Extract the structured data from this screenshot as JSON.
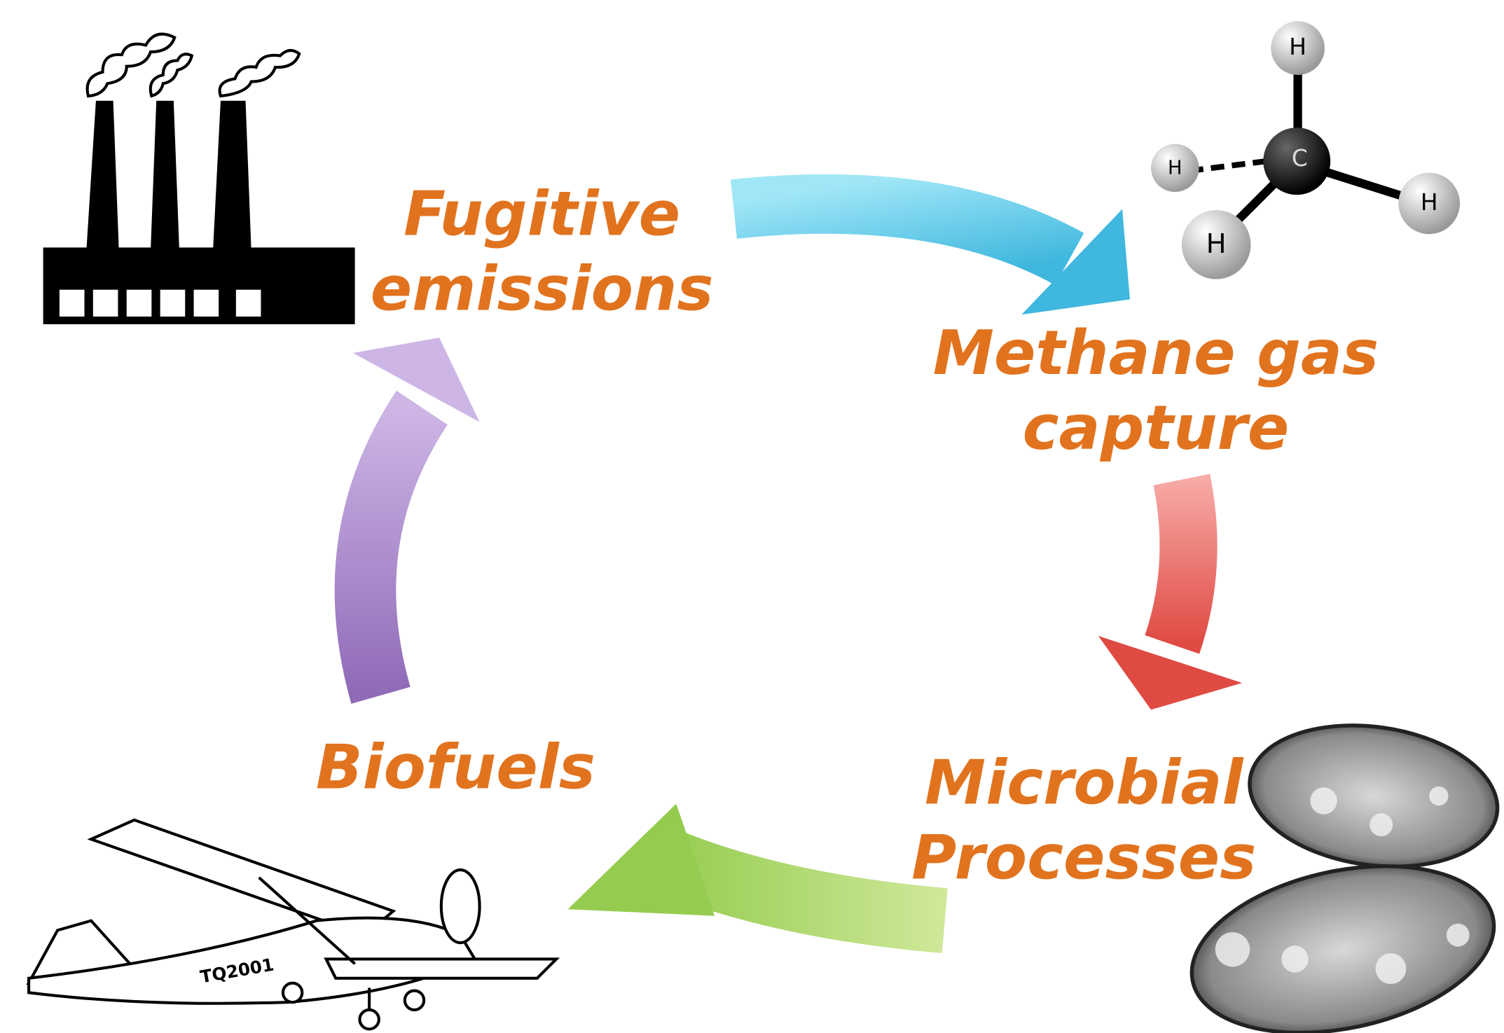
{
  "nodes": [
    {
      "lines": [
        "Fugitive",
        "emissions"
      ]
    },
    {
      "lines": [
        "Methane gas",
        "capture"
      ]
    },
    {
      "lines": [
        "Microbial",
        "Processes"
      ]
    },
    {
      "lines": [
        "Biofuels"
      ]
    }
  ],
  "molecule": {
    "atoms": [
      "H",
      "H",
      "C",
      "H",
      "H"
    ]
  },
  "plane": {
    "registration": "TQ2001"
  }
}
